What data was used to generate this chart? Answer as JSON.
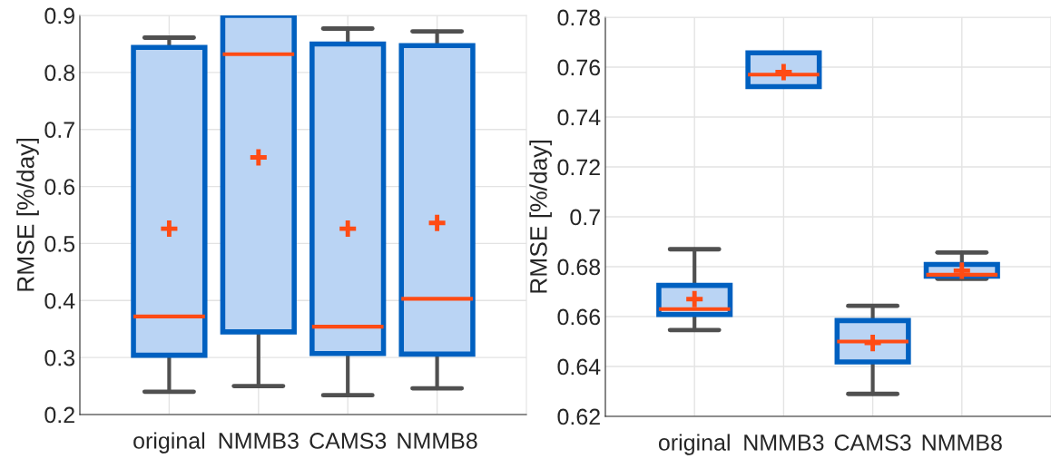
{
  "chart_data": [
    {
      "type": "box",
      "ylabel": "RMSE [%/day]",
      "categories": [
        "original",
        "NMMB3",
        "CAMS3",
        "NMMB8"
      ],
      "ylim": [
        0.2,
        0.9
      ],
      "yticks": [
        0.2,
        0.3,
        0.4,
        0.5,
        0.6,
        0.7,
        0.8,
        0.9
      ],
      "grid": true,
      "color": "#0060c0",
      "marker": "cross",
      "boxes": [
        {
          "low": 0.24,
          "q1": 0.304,
          "median": 0.372,
          "q3": 0.844,
          "high": 0.861,
          "mean": 0.526
        },
        {
          "low": 0.25,
          "q1": 0.345,
          "median": 0.832,
          "q3": 0.9,
          "high": 0.9,
          "mean": 0.651
        },
        {
          "low": 0.234,
          "q1": 0.307,
          "median": 0.354,
          "q3": 0.85,
          "high": 0.877,
          "mean": 0.526
        },
        {
          "low": 0.246,
          "q1": 0.306,
          "median": 0.403,
          "q3": 0.847,
          "high": 0.872,
          "mean": 0.536
        }
      ]
    },
    {
      "type": "box",
      "ylabel": "RMSE [%/day]",
      "categories": [
        "original",
        "NMMB3",
        "CAMS3",
        "NMMB8"
      ],
      "ylim": [
        0.62,
        0.78
      ],
      "yticks": [
        0.62,
        0.64,
        0.66,
        0.68,
        0.7,
        0.72,
        0.74,
        0.76,
        0.78
      ],
      "grid": true,
      "color": "#0060c0",
      "marker": "cross",
      "boxes": [
        {
          "low": 0.6546,
          "q1": 0.6608,
          "median": 0.663,
          "q3": 0.6725,
          "high": 0.687,
          "mean": 0.667
        },
        {
          "low": 0.7522,
          "q1": 0.7522,
          "median": 0.757,
          "q3": 0.7657,
          "high": 0.7657,
          "mean": 0.758
        },
        {
          "low": 0.629,
          "q1": 0.6418,
          "median": 0.65,
          "q3": 0.6584,
          "high": 0.6643,
          "mean": 0.6494
        },
        {
          "low": 0.6752,
          "q1": 0.6762,
          "median": 0.6768,
          "q3": 0.6809,
          "high": 0.6857,
          "mean": 0.6784
        }
      ]
    }
  ]
}
